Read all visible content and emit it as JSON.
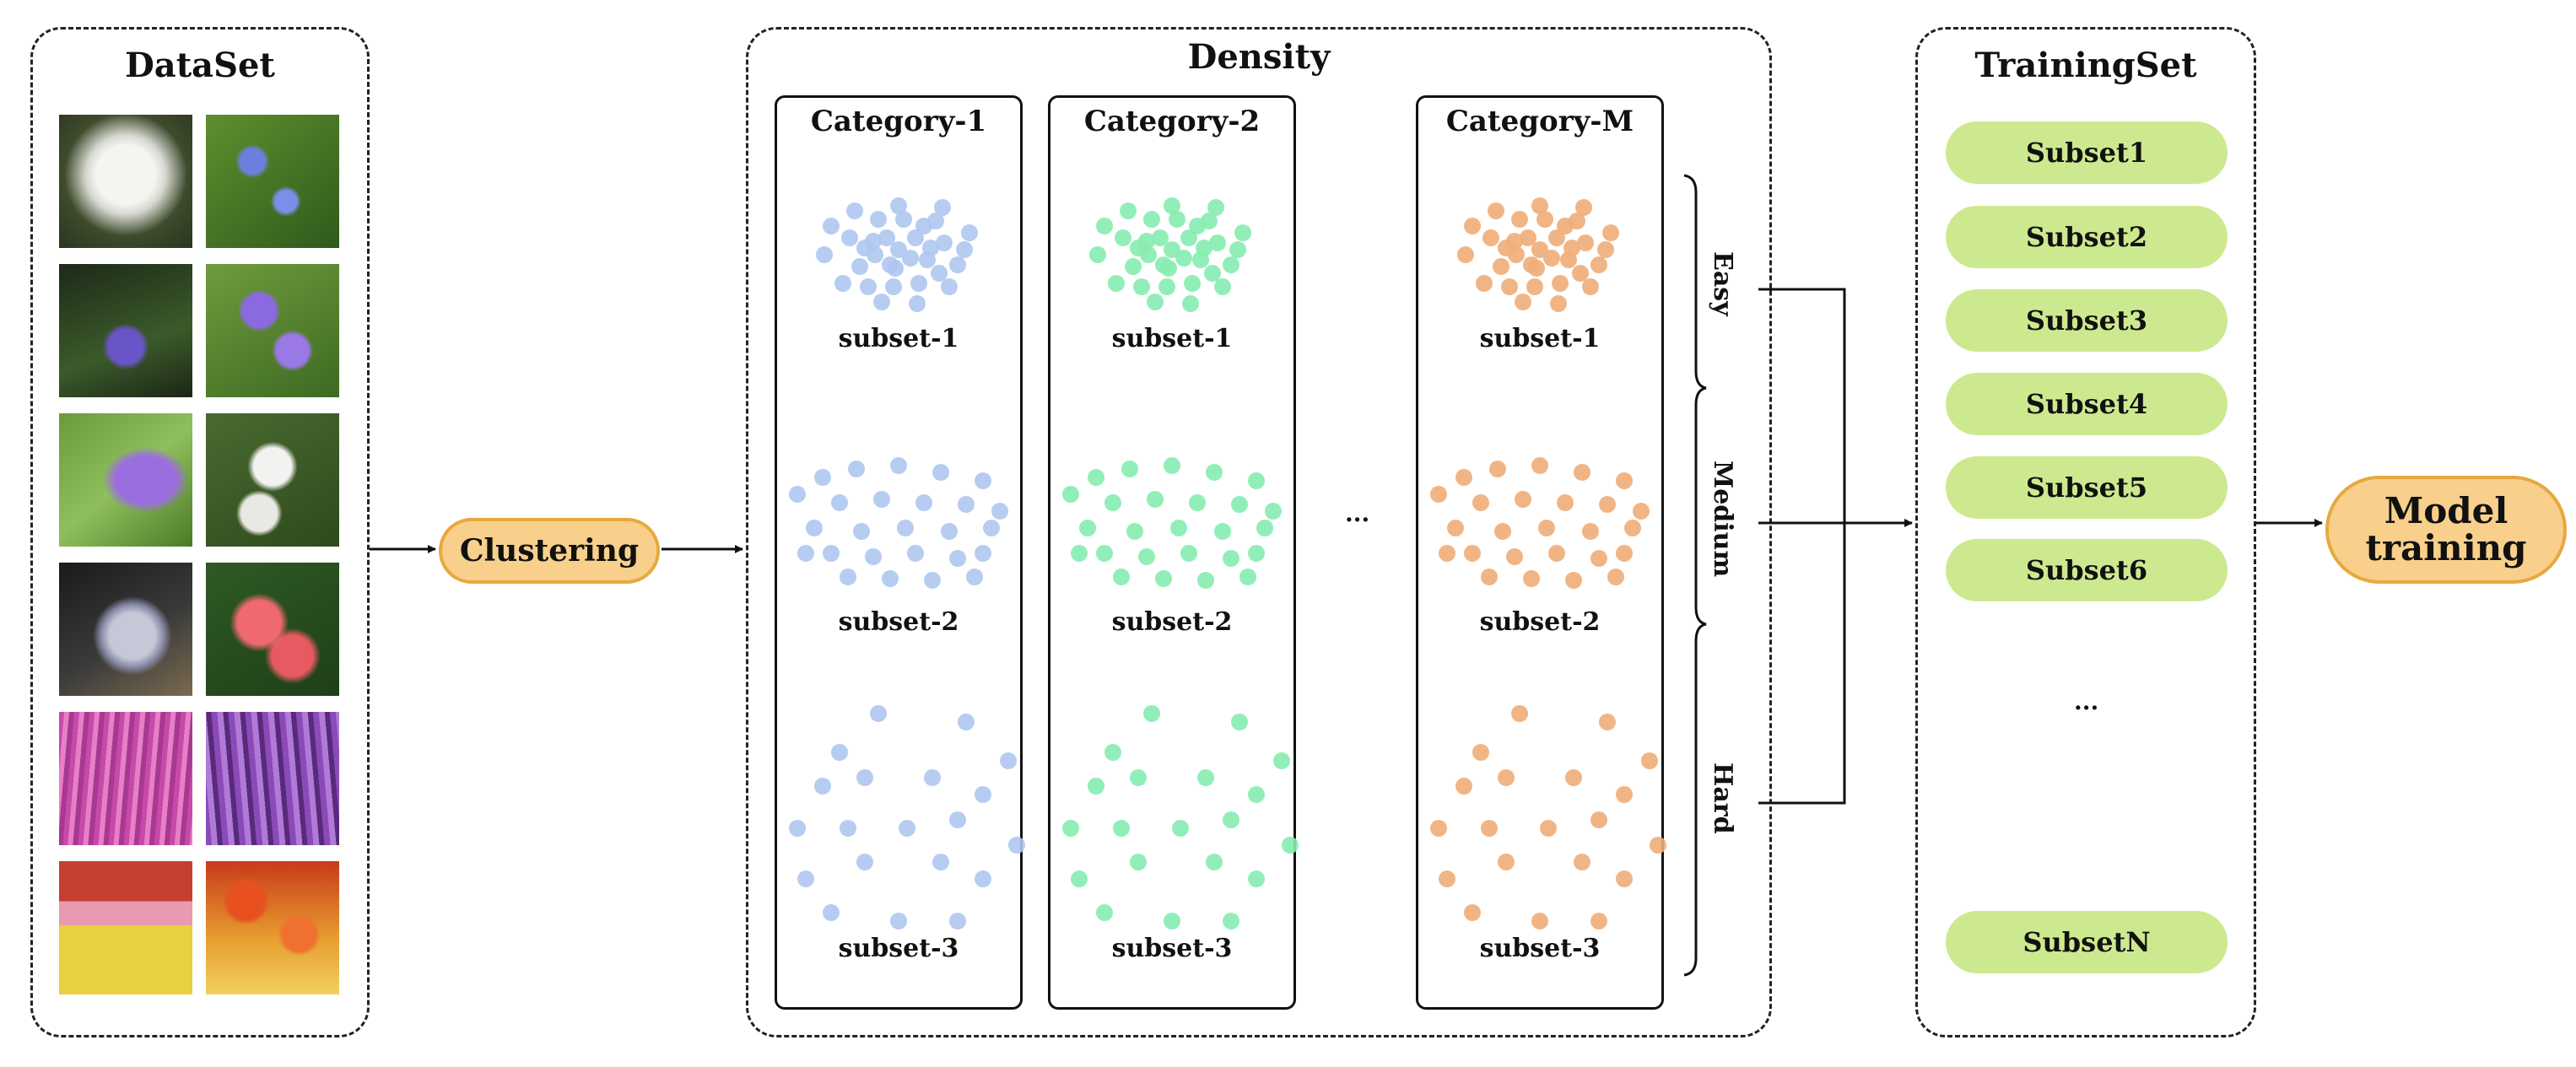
{
  "dataset": {
    "title": "DataSet",
    "photos": [
      "balloon-flower-white",
      "bellflower-blue",
      "bellflower-purple-dark",
      "bellflower-purple",
      "bellflower-closeup",
      "phlox-white",
      "flowers-silver",
      "phlox-pink",
      "astilbe-pink",
      "astilbe-purple",
      "tulip-field-red-yellow",
      "tulip-field-orange"
    ]
  },
  "clustering": {
    "label": "Clustering"
  },
  "density": {
    "title": "Density",
    "ellipsis": "...",
    "categories": [
      {
        "title": "Category-1",
        "color": "#aec6f0"
      },
      {
        "title": "Category-2",
        "color": "#86ecb0"
      },
      {
        "title": "Category-M",
        "color": "#f0ad78"
      }
    ],
    "subsets": [
      "subset-1",
      "subset-2",
      "subset-3"
    ],
    "levels": [
      "Easy",
      "Medium",
      "Hard"
    ]
  },
  "training_set": {
    "title": "TrainingSet",
    "subsets": [
      "Subset1",
      "Subset2",
      "Subset3",
      "Subset4",
      "Subset5",
      "Subset6"
    ],
    "ellipsis": "...",
    "last": "SubsetN"
  },
  "model_training": {
    "label_line1": "Model",
    "label_line2": "training"
  },
  "colors": {
    "orange_fill": "#f8d08b",
    "orange_border": "#e7a83e",
    "green_fill": "#cde98f"
  }
}
